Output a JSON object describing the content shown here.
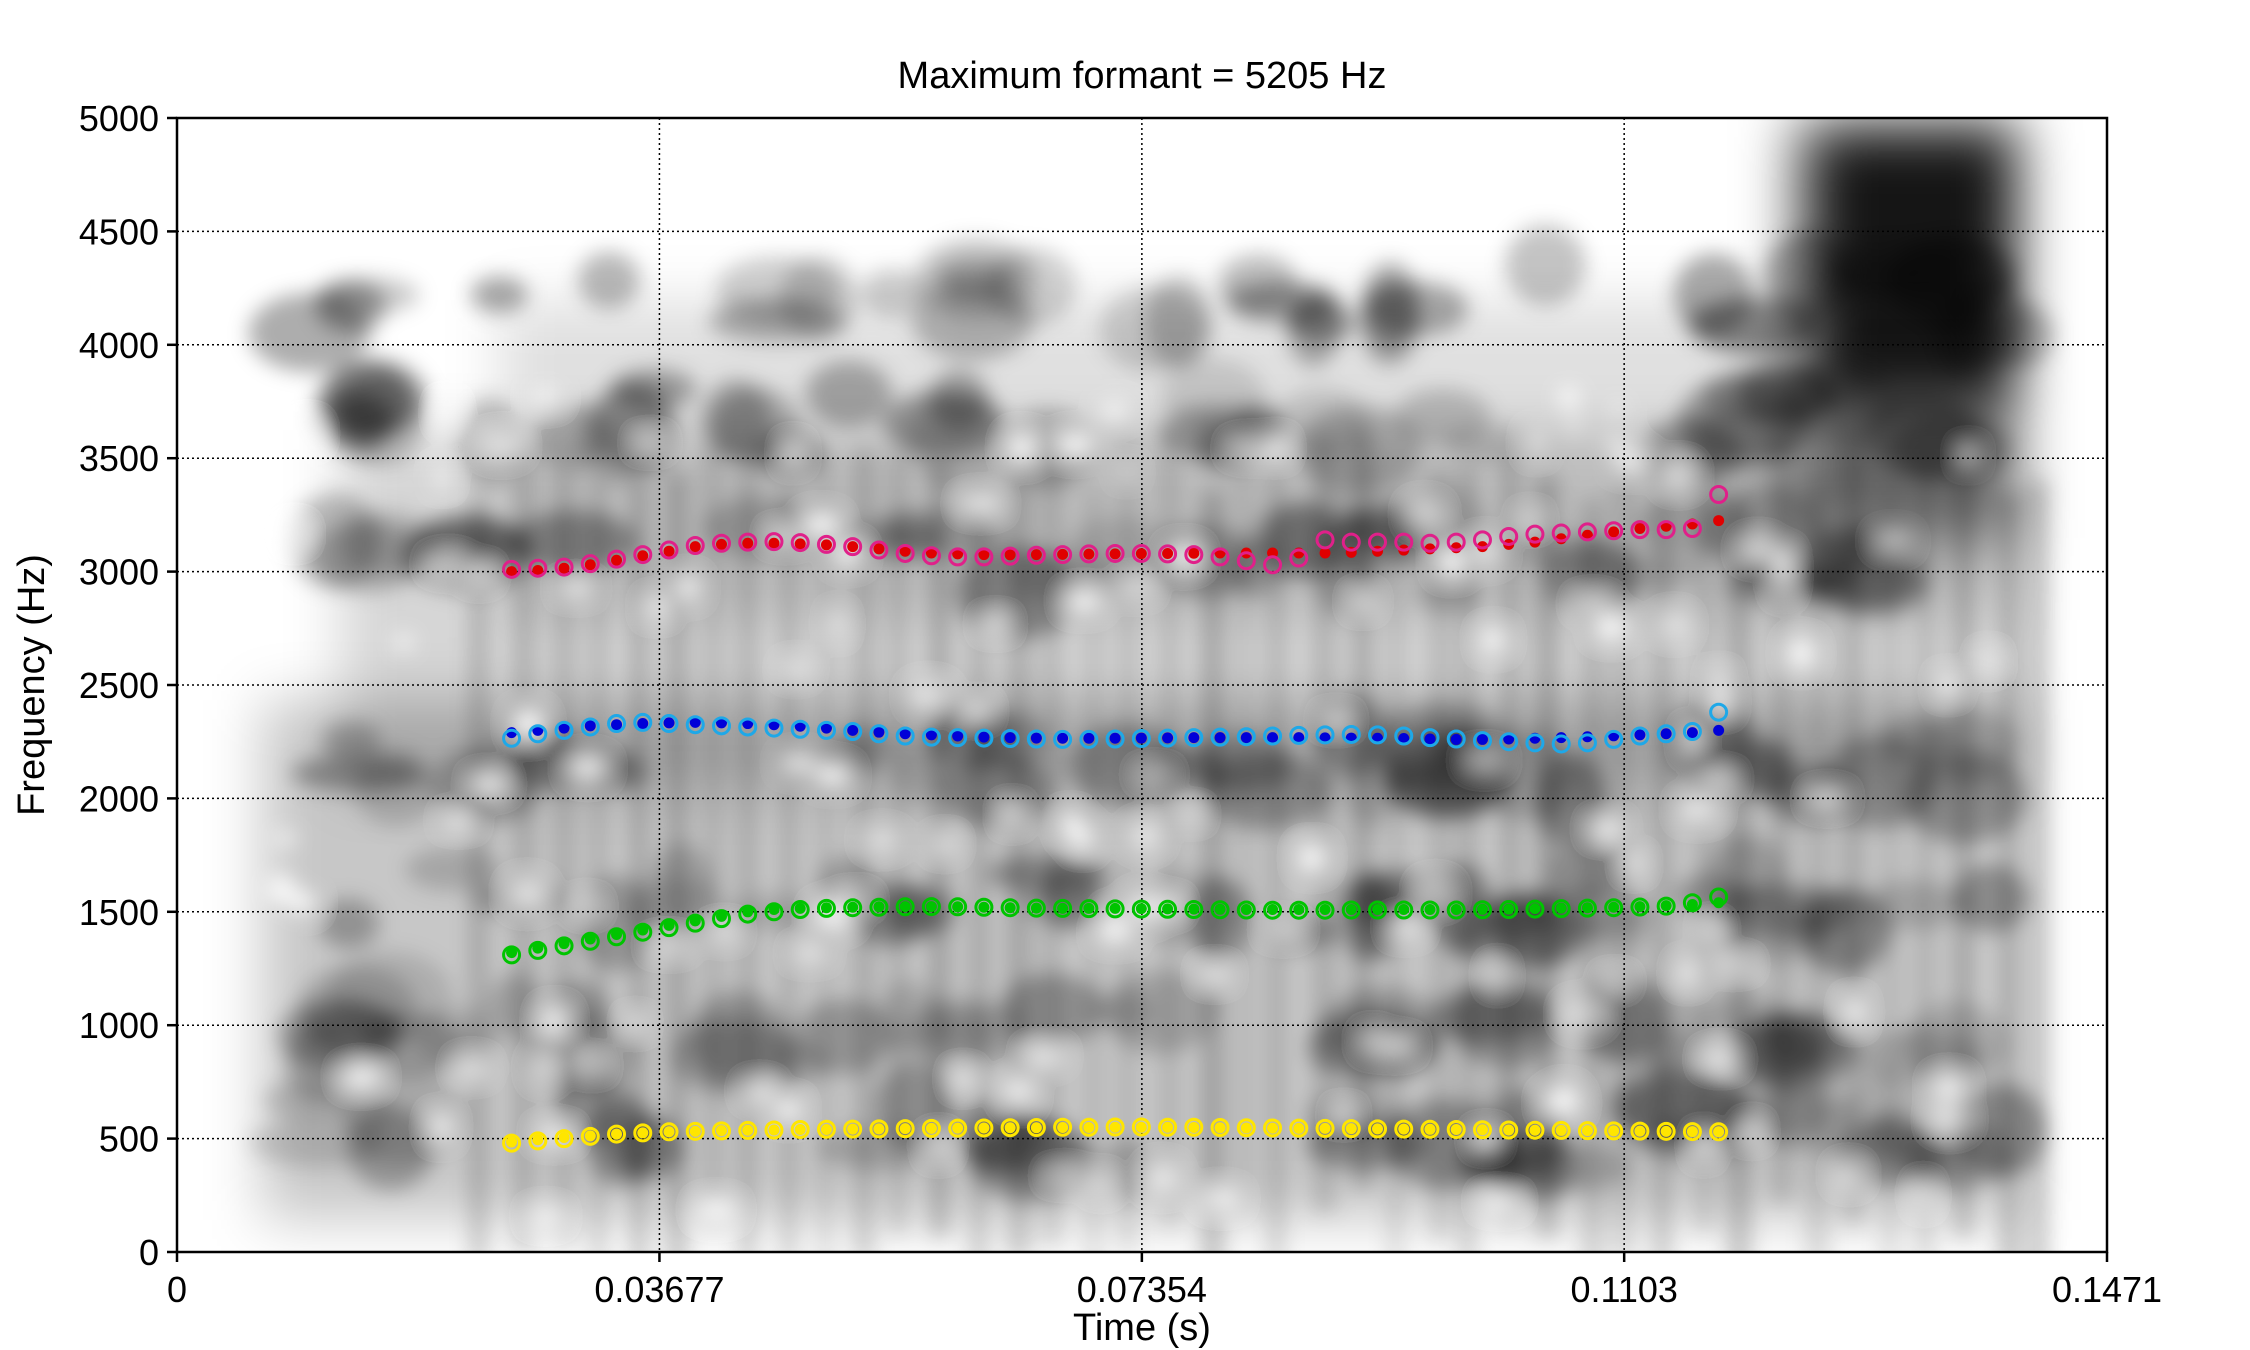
{
  "chart_data": {
    "type": "scatter",
    "title": "Maximum formant = 5205 Hz",
    "xlabel": "Time (s)",
    "ylabel": "Frequency (Hz)",
    "xlim": [
      0,
      0.1471
    ],
    "ylim": [
      0,
      5000
    ],
    "x_ticks": [
      "0",
      "0.03677",
      "0.07354",
      "0.1103",
      "0.1471"
    ],
    "x_tick_values": [
      0,
      0.03677,
      0.07354,
      0.1103,
      0.1471
    ],
    "y_ticks": [
      "0",
      "500",
      "1000",
      "1500",
      "2000",
      "2500",
      "3000",
      "3500",
      "4000",
      "4500",
      "5000"
    ],
    "y_tick_values": [
      0,
      500,
      1000,
      1500,
      2000,
      2500,
      3000,
      3500,
      4000,
      4500,
      5000
    ],
    "grid": true,
    "background": "grayscale spectrogram",
    "x_start": 0.0255,
    "x_step": 0.002,
    "series": [
      {
        "marker": "dot",
        "color": "#ffe600",
        "values": [
          485,
          495,
          505,
          512,
          520,
          525,
          530,
          532,
          535,
          537,
          538,
          540,
          540,
          542,
          543,
          544,
          545,
          546,
          547,
          548,
          548,
          549,
          549,
          550,
          550,
          550,
          549,
          548,
          547,
          546,
          545,
          545,
          544,
          543,
          542,
          541,
          540,
          539,
          538,
          537,
          536,
          535,
          534,
          533,
          532,
          531,
          530
        ]
      },
      {
        "marker": "circle",
        "color": "#ffe600",
        "values": [
          480,
          490,
          500,
          510,
          520,
          525,
          530,
          532,
          534,
          536,
          538,
          540,
          541,
          542,
          543,
          544,
          545,
          546,
          547,
          548,
          549,
          550,
          550,
          551,
          551,
          550,
          550,
          549,
          548,
          547,
          546,
          545,
          544,
          543,
          542,
          541,
          540,
          539,
          538,
          537,
          536,
          535,
          534,
          533,
          532,
          531,
          530
        ]
      },
      {
        "marker": "dot",
        "color": "#00c400",
        "values": [
          1320,
          1340,
          1360,
          1380,
          1400,
          1420,
          1440,
          1460,
          1480,
          1500,
          1510,
          1515,
          1518,
          1520,
          1522,
          1523,
          1523,
          1522,
          1520,
          1518,
          1516,
          1515,
          1515,
          1515,
          1514,
          1513,
          1512,
          1511,
          1510,
          1510,
          1510,
          1510,
          1510,
          1510,
          1510,
          1510,
          1510,
          1511,
          1512,
          1514,
          1516,
          1518,
          1520,
          1523,
          1527,
          1532,
          1540
        ]
      },
      {
        "marker": "circle",
        "color": "#00c400",
        "values": [
          1310,
          1330,
          1350,
          1370,
          1390,
          1410,
          1430,
          1450,
          1470,
          1490,
          1500,
          1510,
          1515,
          1518,
          1520,
          1522,
          1523,
          1522,
          1520,
          1518,
          1516,
          1515,
          1514,
          1513,
          1512,
          1511,
          1510,
          1509,
          1508,
          1507,
          1507,
          1507,
          1508,
          1508,
          1508,
          1508,
          1508,
          1509,
          1510,
          1512,
          1514,
          1516,
          1518,
          1521,
          1525,
          1540,
          1565
        ]
      },
      {
        "marker": "dot",
        "color": "#0000d8",
        "values": [
          2290,
          2300,
          2310,
          2320,
          2325,
          2330,
          2333,
          2335,
          2333,
          2330,
          2325,
          2318,
          2310,
          2300,
          2292,
          2285,
          2280,
          2275,
          2270,
          2268,
          2266,
          2265,
          2265,
          2265,
          2266,
          2267,
          2268,
          2268,
          2268,
          2268,
          2268,
          2267,
          2266,
          2265,
          2264,
          2262,
          2260,
          2260,
          2262,
          2265,
          2268,
          2272,
          2276,
          2280,
          2285,
          2290,
          2300
        ]
      },
      {
        "marker": "circle",
        "color": "#1ea8e8",
        "values": [
          2265,
          2285,
          2300,
          2315,
          2330,
          2335,
          2330,
          2325,
          2320,
          2315,
          2310,
          2305,
          2300,
          2295,
          2285,
          2275,
          2270,
          2268,
          2266,
          2264,
          2262,
          2260,
          2260,
          2262,
          2264,
          2266,
          2268,
          2270,
          2272,
          2275,
          2278,
          2280,
          2282,
          2280,
          2275,
          2268,
          2262,
          2255,
          2250,
          2245,
          2240,
          2245,
          2260,
          2275,
          2285,
          2295,
          2380
        ]
      },
      {
        "marker": "dot",
        "color": "#e00000",
        "values": [
          3000,
          3005,
          3015,
          3030,
          3050,
          3070,
          3090,
          3110,
          3120,
          3125,
          3125,
          3122,
          3118,
          3110,
          3100,
          3090,
          3082,
          3078,
          3075,
          3074,
          3075,
          3076,
          3077,
          3078,
          3079,
          3080,
          3081,
          3082,
          3082,
          3082,
          3082,
          3082,
          3085,
          3090,
          3095,
          3100,
          3105,
          3110,
          3120,
          3130,
          3145,
          3160,
          3175,
          3190,
          3200,
          3210,
          3225
        ]
      },
      {
        "marker": "circle",
        "color": "#e0208a",
        "values": [
          3010,
          3015,
          3020,
          3035,
          3055,
          3075,
          3095,
          3115,
          3125,
          3130,
          3132,
          3128,
          3120,
          3110,
          3095,
          3080,
          3070,
          3065,
          3065,
          3068,
          3072,
          3075,
          3078,
          3080,
          3080,
          3078,
          3075,
          3065,
          3048,
          3030,
          3060,
          3140,
          3130,
          3130,
          3130,
          3125,
          3130,
          3140,
          3155,
          3165,
          3170,
          3175,
          3180,
          3185,
          3185,
          3190,
          3340
        ]
      }
    ]
  }
}
